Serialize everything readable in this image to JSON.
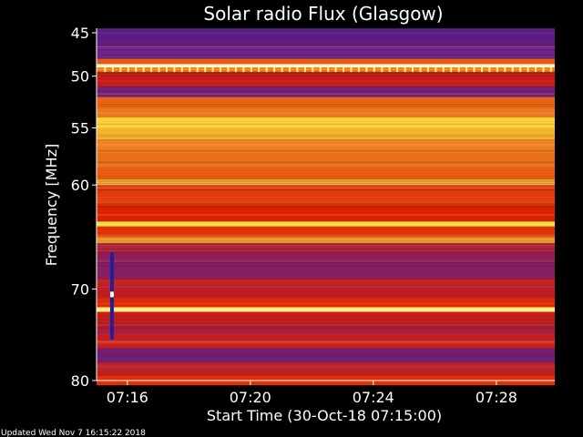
{
  "chart_data": {
    "type": "heatmap",
    "title": "Solar radio Flux (Glasgow)",
    "xlabel": "Start Time (30-Oct-18 07:15:00)",
    "ylabel": "Frequency [MHz]",
    "x_ticks": [
      "07:16",
      "07:20",
      "07:24",
      "07:28"
    ],
    "x_tick_minutes": [
      1,
      5,
      9,
      13
    ],
    "xlim_minutes": [
      0,
      14.9
    ],
    "y_ticks": [
      45,
      50,
      55,
      60,
      70,
      80
    ],
    "ylim": [
      44.5,
      80.5
    ],
    "y_scale": "nonlinear",
    "y_tick_fraction": [
      0.013,
      0.136,
      0.283,
      0.445,
      0.74,
      1.0
    ],
    "colors": {
      "low": "#3c1eb4",
      "mid": "#dc1e00",
      "high": "#ffe63c",
      "peak": "#fffff0"
    },
    "bands": [
      {
        "freq": [
          44.5,
          46.0
        ],
        "level": 0.08
      },
      {
        "freq": [
          46.0,
          48.0
        ],
        "level": 0.1
      },
      {
        "freq": [
          48.0,
          48.6
        ],
        "level": 0.5
      },
      {
        "freq": [
          48.6,
          49.0
        ],
        "level": 0.97
      },
      {
        "freq": [
          49.0,
          49.5
        ],
        "level": 0.62
      },
      {
        "freq": [
          49.5,
          51.0
        ],
        "level": 0.3
      },
      {
        "freq": [
          51.0,
          52.0
        ],
        "level": 0.12
      },
      {
        "freq": [
          52.0,
          53.0
        ],
        "level": 0.52
      },
      {
        "freq": [
          53.0,
          54.0
        ],
        "level": 0.58
      },
      {
        "freq": [
          54.0,
          55.0
        ],
        "level": 0.8
      },
      {
        "freq": [
          55.0,
          56.0
        ],
        "level": 0.72
      },
      {
        "freq": [
          56.0,
          57.0
        ],
        "level": 0.6
      },
      {
        "freq": [
          57.0,
          58.5
        ],
        "level": 0.55
      },
      {
        "freq": [
          58.5,
          59.5
        ],
        "level": 0.5
      },
      {
        "freq": [
          59.5,
          60.0
        ],
        "level": 0.7
      },
      {
        "freq": [
          60.0,
          62.0
        ],
        "level": 0.42
      },
      {
        "freq": [
          62.0,
          63.5
        ],
        "level": 0.36
      },
      {
        "freq": [
          63.5,
          64.0
        ],
        "level": 0.82
      },
      {
        "freq": [
          64.0,
          65.0
        ],
        "level": 0.4
      },
      {
        "freq": [
          65.0,
          65.6
        ],
        "level": 0.66
      },
      {
        "freq": [
          65.6,
          66.5
        ],
        "level": 0.24
      },
      {
        "freq": [
          66.5,
          67.5
        ],
        "level": 0.18
      },
      {
        "freq": [
          67.5,
          69.0
        ],
        "level": 0.16
      },
      {
        "freq": [
          69.0,
          71.0
        ],
        "level": 0.28
      },
      {
        "freq": [
          71.0,
          72.0
        ],
        "level": 0.38
      },
      {
        "freq": [
          72.0,
          72.5
        ],
        "level": 0.9
      },
      {
        "freq": [
          72.5,
          74.0
        ],
        "level": 0.3
      },
      {
        "freq": [
          74.0,
          75.0
        ],
        "level": 0.24
      },
      {
        "freq": [
          75.0,
          76.5
        ],
        "level": 0.3
      },
      {
        "freq": [
          76.5,
          78.0
        ],
        "level": 0.12
      },
      {
        "freq": [
          78.0,
          79.5
        ],
        "level": 0.28
      },
      {
        "freq": [
          79.5,
          80.5
        ],
        "level": 0.4
      }
    ],
    "spikes": [
      {
        "minute": 0.5,
        "freq": [
          66.5,
          75.5
        ],
        "level": 0.02
      }
    ],
    "spike_highlights": [
      {
        "minute": 0.5,
        "freq": [
          70.3,
          70.9
        ],
        "level": 1.0
      }
    ]
  },
  "footer": {
    "updated": "Updated Wed Nov  7 16:15:22 2018"
  }
}
